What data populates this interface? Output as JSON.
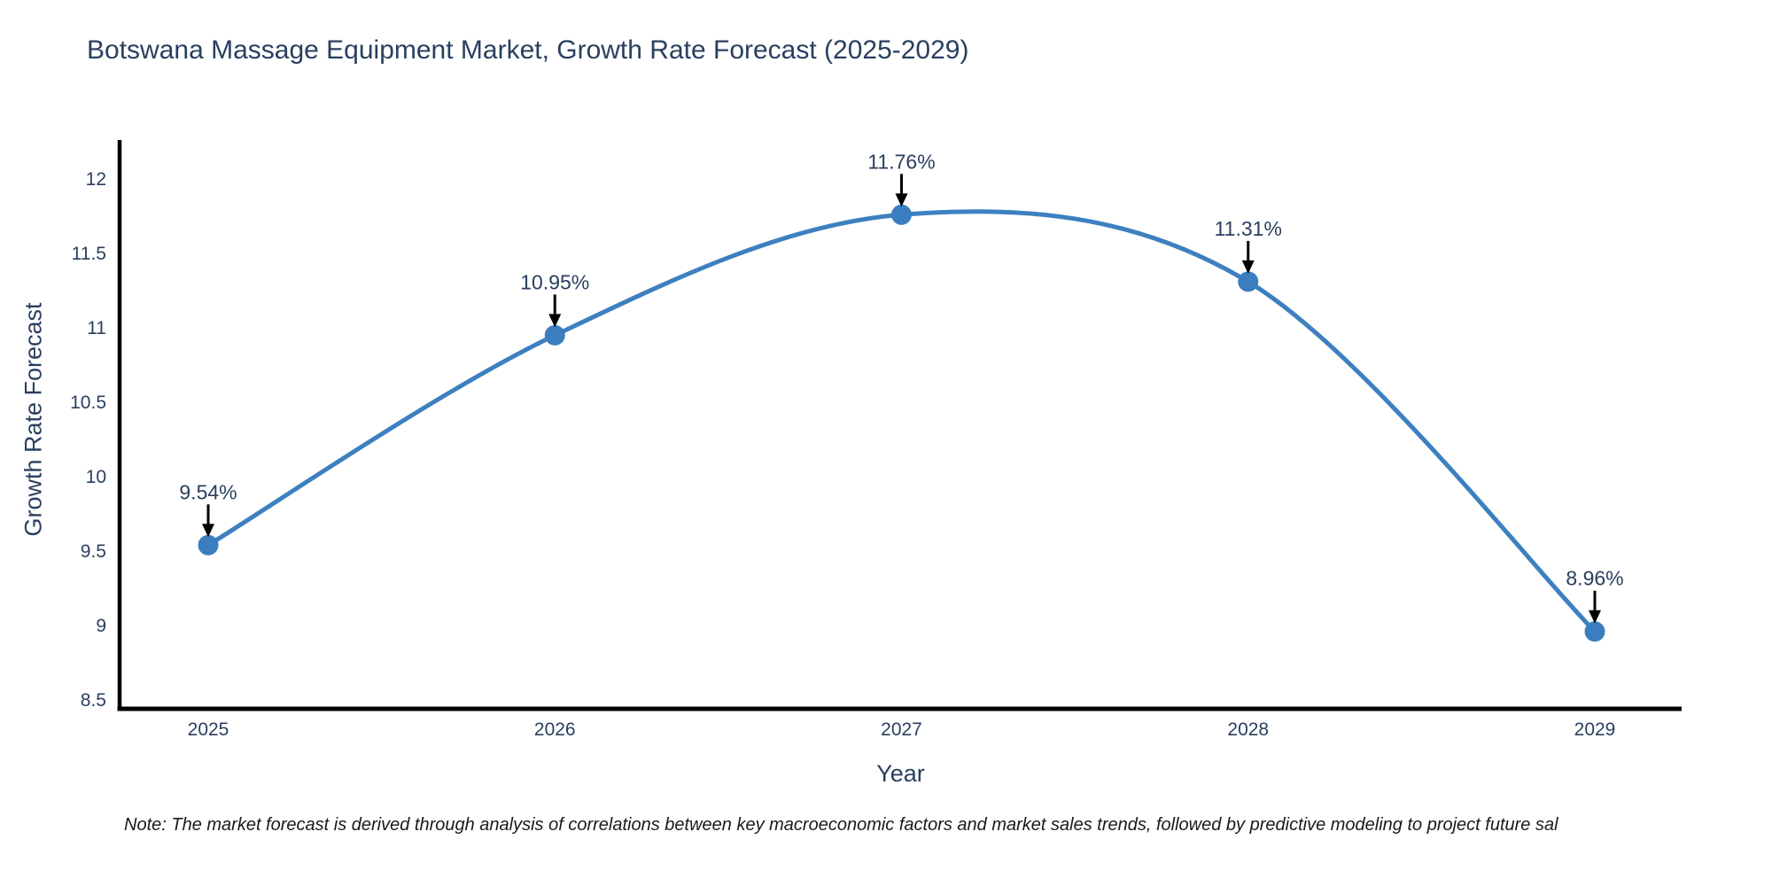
{
  "title": "Botswana Massage Equipment Market, Growth Rate Forecast (2025-2029)",
  "note": "Note: The market forecast is derived through analysis of correlations between key macroeconomic factors and market sales trends, followed by predictive modeling to project future sal",
  "chart_data": {
    "type": "line",
    "title": "Botswana Massage Equipment Market, Growth Rate Forecast (2025-2029)",
    "x": [
      2025,
      2026,
      2027,
      2028,
      2029
    ],
    "values": [
      9.54,
      10.95,
      11.76,
      11.31,
      8.96
    ],
    "point_labels": [
      "9.54%",
      "10.95%",
      "11.76%",
      "11.31%",
      "8.96%"
    ],
    "xlabel": "Year",
    "ylabel": "Growth Rate Forecast",
    "yticks": [
      8.5,
      9,
      9.5,
      10,
      10.5,
      11,
      11.5,
      12
    ],
    "ylim": [
      8.44,
      12.26
    ],
    "grid": false,
    "legend": "none",
    "line_shape": "spline",
    "colors": {
      "line": "#3d80c0",
      "marker": "#3a7ebf",
      "axis_line": "#000000",
      "tick_text": "#2a3f5f",
      "annotation_text": "#2a3f5f",
      "annotation_arrow": "#000000",
      "background": "#ffffff"
    }
  }
}
